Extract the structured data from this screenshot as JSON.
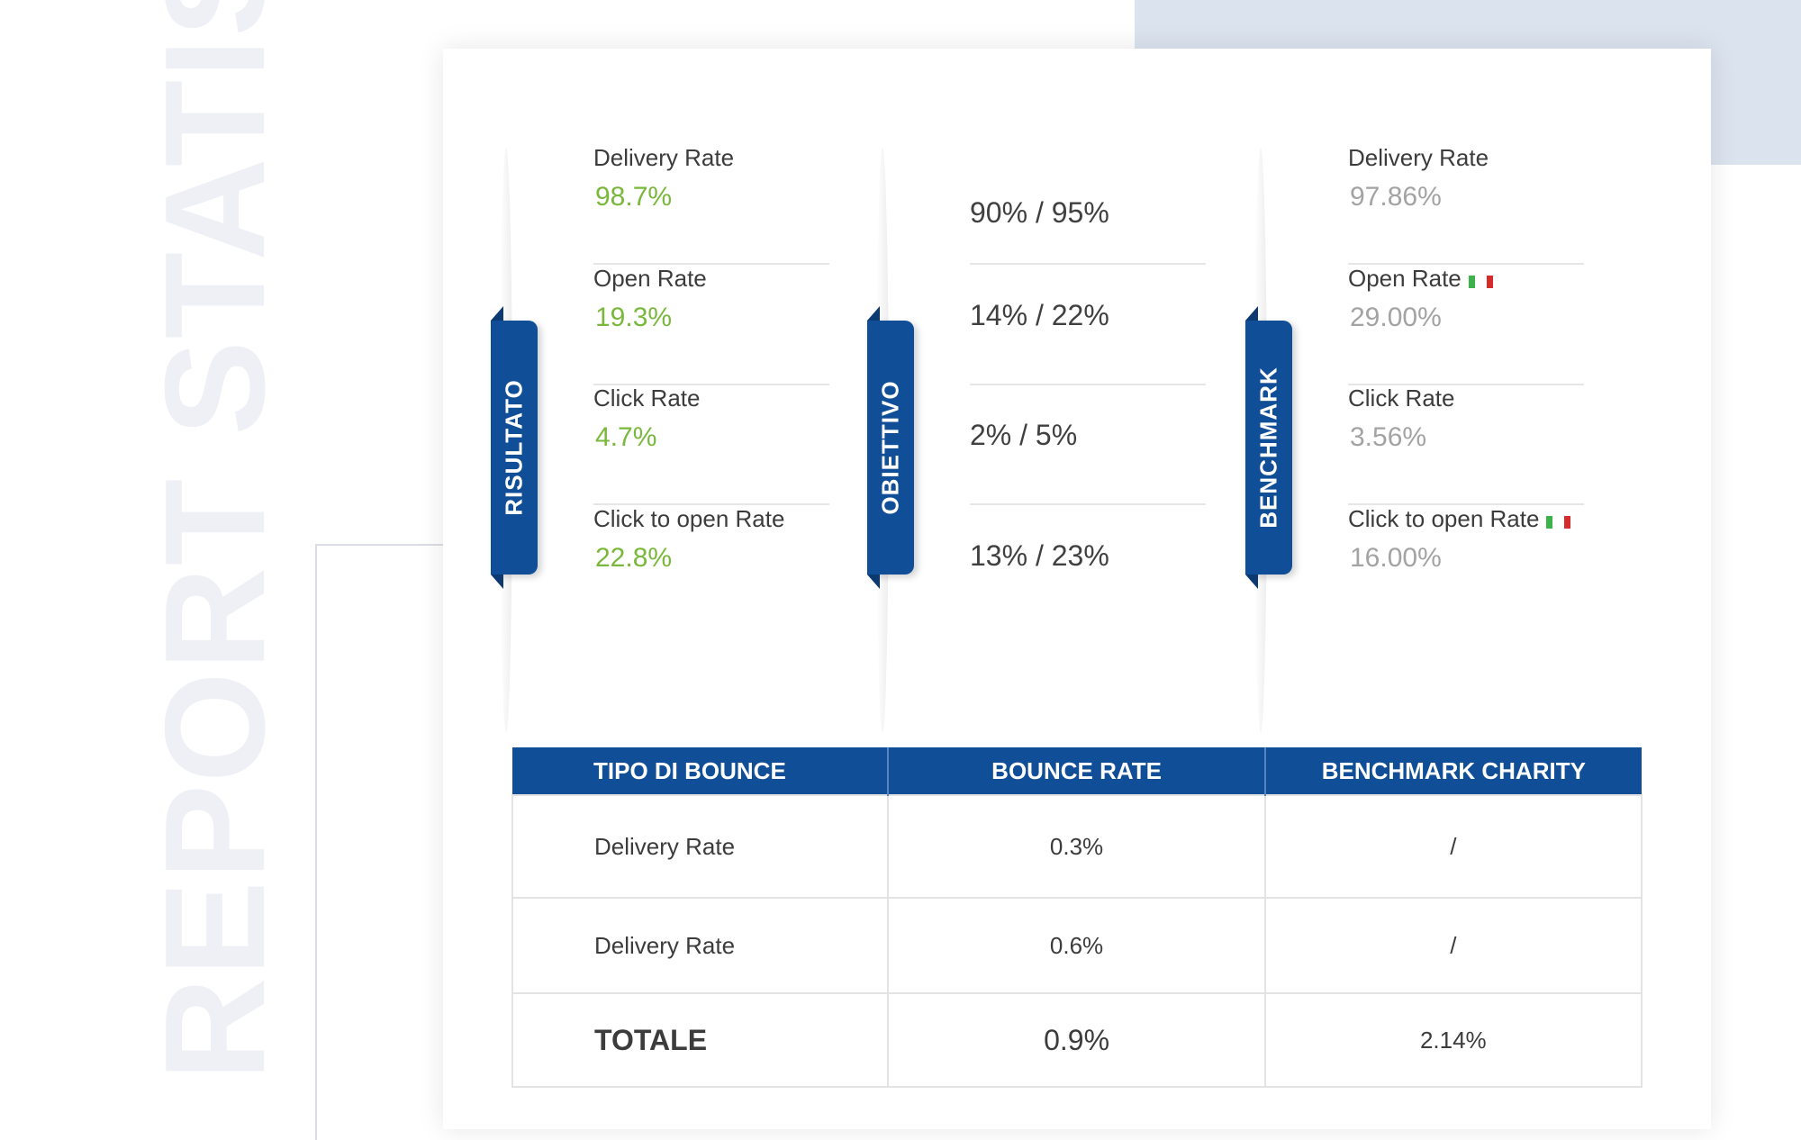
{
  "background_word": "REPORT STATISTICHE",
  "colors": {
    "brand_blue": "#104f97",
    "green": "#79b83b",
    "grey": "#a3a3a3"
  },
  "columns": {
    "risultato": {
      "ribbon": "RISULTATO",
      "items": [
        {
          "label": "Delivery Rate",
          "value": "98.7%"
        },
        {
          "label": "Open Rate",
          "value": "19.3%"
        },
        {
          "label": "Click Rate",
          "value": "4.7%"
        },
        {
          "label": "Click to open Rate",
          "value": "22.8%"
        }
      ]
    },
    "obiettivo": {
      "ribbon": "OBIETTIVO",
      "items": [
        {
          "value": "90% / 95%"
        },
        {
          "value": "14% / 22%"
        },
        {
          "value": "2% / 5%"
        },
        {
          "value": "13% / 23%"
        }
      ]
    },
    "benchmark": {
      "ribbon": "BENCHMARK",
      "items": [
        {
          "label": "Delivery Rate",
          "value": "97.86%"
        },
        {
          "label": "Open Rate",
          "value": "29.00%",
          "icon": "italy-flag-icon"
        },
        {
          "label": "Click Rate",
          "value": "3.56%"
        },
        {
          "label": "Click to open Rate",
          "value": "16.00%",
          "icon": "italy-flag-icon"
        }
      ]
    }
  },
  "bounce_table": {
    "headers": [
      "TIPO DI BOUNCE",
      "BOUNCE RATE",
      "BENCHMARK CHARITY"
    ],
    "rows": [
      [
        "Delivery Rate",
        "0.3%",
        "/"
      ],
      [
        "Delivery Rate",
        "0.6%",
        "/"
      ]
    ],
    "total": [
      "TOTALE",
      "0.9%",
      "2.14%"
    ]
  }
}
